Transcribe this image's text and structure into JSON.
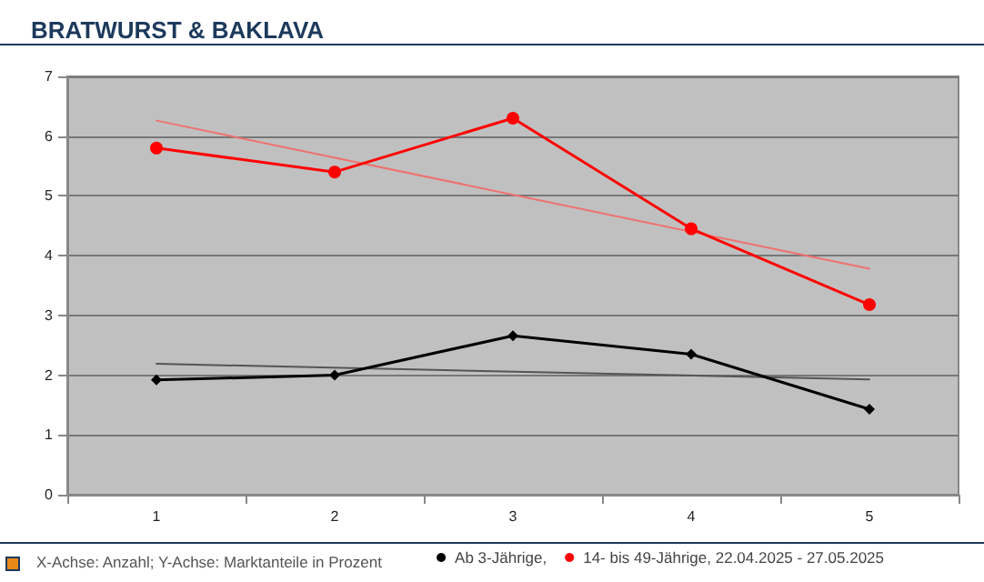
{
  "chart_data": {
    "type": "line",
    "title": "BRATWURST & BAKLAVA",
    "categories": [
      "1",
      "2",
      "3",
      "4",
      "5"
    ],
    "series": [
      {
        "name": "Ab 3-Jährige,",
        "color": "#000000",
        "marker": "diamond",
        "values": [
          1.92,
          2.0,
          2.66,
          2.35,
          1.43
        ]
      },
      {
        "name": "14- bis 49-Jährige, 22.04.2025 - 27.05.2025",
        "color": "#ff0000",
        "marker": "circle",
        "values": [
          5.8,
          5.4,
          6.3,
          4.45,
          3.18
        ]
      },
      {
        "type": "line",
        "color": "#555555",
        "marker": "none",
        "x": [
          "1",
          "5"
        ],
        "values": [
          2.19,
          1.93
        ]
      },
      {
        "type": "line",
        "color": "#f07070",
        "marker": "none",
        "x": [
          "1",
          "5"
        ],
        "values": [
          6.26,
          3.78
        ]
      }
    ],
    "ylim": [
      0,
      7
    ],
    "yticks": [
      0,
      1,
      2,
      3,
      4,
      5,
      6,
      7
    ],
    "grid": "y",
    "legend": "bottom right",
    "annotations": [
      "X-Achse: Anzahl; Y-Achse: Marktanteile in Prozent"
    ]
  }
}
